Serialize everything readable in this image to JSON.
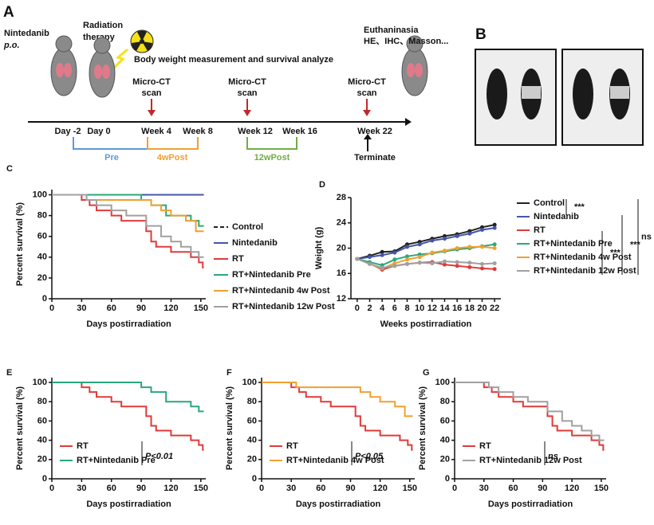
{
  "panel_labels": [
    "A",
    "B"
  ],
  "timeline": {
    "drug": "Nintedanib",
    "route": "p.o.",
    "radiation": [
      "Radiation",
      "therapy"
    ],
    "measure": "Body weight measurement and survival analyze",
    "end": [
      "Euthaninasia",
      "HE、IHC、Masson..."
    ],
    "scan": [
      "Micro-CT",
      "scan"
    ],
    "times": [
      "Day -2",
      "Day 0",
      "Week 4",
      "Week 8",
      "Week 12",
      "Week 16",
      "Week 22"
    ],
    "groups": [
      "Pre",
      "4wPost",
      "12wPost"
    ],
    "terminate": "Terminate"
  },
  "chart_data": [
    {
      "type": "line",
      "panel_label": "C",
      "ylabel": "Percent survival (%)",
      "xlabel": "Days postirradiation",
      "xlim": [
        0,
        155
      ],
      "xticks": [
        0,
        30,
        60,
        90,
        120,
        150
      ],
      "ylim": [
        0,
        105
      ],
      "yticks": [
        0,
        20,
        40,
        60,
        80,
        100
      ],
      "series": [
        {
          "name": "Control",
          "color": "#222222",
          "dashed": true,
          "x": [
            0,
            153
          ],
          "values": [
            100,
            100
          ]
        },
        {
          "name": "Nintedanib",
          "color": "#4455aa",
          "x": [
            0,
            153
          ],
          "values": [
            100,
            100
          ]
        },
        {
          "name": "RT",
          "color": "#e03a3a",
          "x": [
            0,
            30,
            30,
            38,
            38,
            45,
            45,
            60,
            60,
            70,
            70,
            95,
            95,
            100,
            100,
            105,
            105,
            120,
            120,
            140,
            140,
            148,
            148,
            152,
            152,
            153
          ],
          "values": [
            100,
            100,
            95,
            95,
            90,
            90,
            85,
            85,
            80,
            80,
            75,
            75,
            65,
            65,
            55,
            55,
            50,
            50,
            45,
            45,
            40,
            40,
            35,
            35,
            30,
            30
          ]
        },
        {
          "name": "RT+Nintedanib Pre",
          "color": "#2aa87a",
          "x": [
            0,
            90,
            90,
            100,
            100,
            115,
            115,
            140,
            140,
            148,
            148,
            153
          ],
          "values": [
            100,
            100,
            95,
            95,
            90,
            90,
            80,
            80,
            75,
            75,
            70,
            70
          ]
        },
        {
          "name": "RT+Nintedanib 4w Post",
          "color": "#f0a030",
          "x": [
            0,
            35,
            35,
            100,
            100,
            110,
            110,
            120,
            120,
            135,
            135,
            145,
            145,
            153
          ],
          "values": [
            100,
            100,
            95,
            95,
            90,
            90,
            85,
            85,
            80,
            80,
            75,
            75,
            65,
            65
          ]
        },
        {
          "name": "RT+Nintedanib 12w Post",
          "color": "#a0a0a0",
          "x": [
            0,
            35,
            35,
            45,
            45,
            60,
            60,
            75,
            75,
            95,
            95,
            110,
            110,
            120,
            120,
            130,
            130,
            140,
            140,
            148,
            148,
            153
          ],
          "values": [
            100,
            100,
            95,
            95,
            90,
            90,
            85,
            85,
            80,
            80,
            70,
            70,
            60,
            60,
            55,
            55,
            50,
            50,
            45,
            45,
            40,
            40
          ]
        }
      ]
    },
    {
      "type": "line",
      "panel_label": "D",
      "markers": true,
      "ylabel": "Weight (g)",
      "xlabel": "Weeks postirradiation",
      "xlim": [
        -1,
        23
      ],
      "xticks": [
        0,
        2,
        4,
        6,
        8,
        10,
        12,
        14,
        16,
        18,
        20,
        22
      ],
      "ylim": [
        12,
        28
      ],
      "yticks": [
        12,
        16,
        20,
        24,
        28
      ],
      "annotations": [
        "***",
        "***",
        "***",
        "ns"
      ],
      "series": [
        {
          "name": "Control",
          "color": "#222222",
          "x": [
            0,
            2,
            4,
            6,
            8,
            10,
            12,
            14,
            16,
            18,
            20,
            22
          ],
          "values": [
            18.3,
            18.8,
            19.4,
            19.5,
            20.6,
            21,
            21.5,
            21.9,
            22.2,
            22.7,
            23.3,
            23.7
          ]
        },
        {
          "name": "Nintedanib",
          "color": "#4455aa",
          "x": [
            0,
            2,
            4,
            6,
            8,
            10,
            12,
            14,
            16,
            18,
            20,
            22
          ],
          "values": [
            18.3,
            18.6,
            18.9,
            19.3,
            20.2,
            20.6,
            21.2,
            21.5,
            21.9,
            22.3,
            22.9,
            23.2
          ]
        },
        {
          "name": "RT",
          "color": "#e03a3a",
          "x": [
            0,
            2,
            4,
            6,
            8,
            10,
            12,
            14,
            16,
            18,
            20,
            22
          ],
          "values": [
            18.3,
            17.6,
            16.6,
            17.2,
            17.5,
            17.7,
            17.8,
            17.4,
            17.2,
            17,
            16.8,
            16.7
          ]
        },
        {
          "name": "RT+Nintedanib Pre",
          "color": "#2aa87a",
          "x": [
            0,
            2,
            4,
            6,
            8,
            10,
            12,
            14,
            16,
            18,
            20,
            22
          ],
          "values": [
            18.3,
            17.8,
            17.3,
            18.2,
            18.7,
            19,
            19.2,
            19.5,
            19.8,
            20,
            20.3,
            20.6
          ]
        },
        {
          "name": "RT+Nintedanib 4w Post",
          "color": "#f0a030",
          "x": [
            0,
            2,
            4,
            6,
            8,
            10,
            12,
            14,
            16,
            18,
            20,
            22
          ],
          "values": [
            18.3,
            17.5,
            16.8,
            17.6,
            18.2,
            18.6,
            19.3,
            19.6,
            20,
            20.2,
            20.2,
            20
          ]
        },
        {
          "name": "RT+Nintedanib 12w Post",
          "color": "#a0a0a0",
          "x": [
            0,
            2,
            4,
            6,
            8,
            10,
            12,
            14,
            16,
            18,
            20,
            22
          ],
          "values": [
            18.3,
            17.5,
            16.9,
            17.2,
            17.5,
            17.7,
            17.6,
            17.9,
            17.8,
            17.7,
            17.5,
            17.6
          ]
        }
      ]
    },
    {
      "type": "line",
      "panel_label": "E",
      "ylabel": "Percent survival (%)",
      "xlabel": "Days postirradiation",
      "xlim": [
        0,
        155
      ],
      "xticks": [
        0,
        30,
        60,
        90,
        120,
        150
      ],
      "ylim": [
        0,
        105
      ],
      "yticks": [
        0,
        20,
        40,
        60,
        80,
        100
      ],
      "annotations": [
        "P<0.01"
      ],
      "series": [
        {
          "name": "RT",
          "color": "#e03a3a",
          "x": [
            0,
            30,
            30,
            38,
            38,
            45,
            45,
            60,
            60,
            70,
            70,
            95,
            95,
            100,
            100,
            105,
            105,
            120,
            120,
            140,
            140,
            148,
            148,
            152,
            152,
            153
          ],
          "values": [
            100,
            100,
            95,
            95,
            90,
            90,
            85,
            85,
            80,
            80,
            75,
            75,
            65,
            65,
            55,
            55,
            50,
            50,
            45,
            45,
            40,
            40,
            35,
            35,
            30,
            30
          ]
        },
        {
          "name": "RT+Nintedanib Pre",
          "color": "#2aa87a",
          "x": [
            0,
            90,
            90,
            100,
            100,
            115,
            115,
            140,
            140,
            148,
            148,
            153
          ],
          "values": [
            100,
            100,
            95,
            95,
            90,
            90,
            80,
            80,
            75,
            75,
            70,
            70
          ]
        }
      ]
    },
    {
      "type": "line",
      "panel_label": "F",
      "ylabel": "Percent survival (%)",
      "xlabel": "Days postirradiation",
      "xlim": [
        0,
        155
      ],
      "xticks": [
        0,
        30,
        60,
        90,
        120,
        150
      ],
      "ylim": [
        0,
        105
      ],
      "yticks": [
        0,
        20,
        40,
        60,
        80,
        100
      ],
      "annotations": [
        "P<0.05"
      ],
      "series": [
        {
          "name": "RT",
          "color": "#e03a3a",
          "x": [
            0,
            30,
            30,
            38,
            38,
            45,
            45,
            60,
            60,
            70,
            70,
            95,
            95,
            100,
            100,
            105,
            105,
            120,
            120,
            140,
            140,
            148,
            148,
            152,
            152,
            153
          ],
          "values": [
            100,
            100,
            95,
            95,
            90,
            90,
            85,
            85,
            80,
            80,
            75,
            75,
            65,
            65,
            55,
            55,
            50,
            50,
            45,
            45,
            40,
            40,
            35,
            35,
            30,
            30
          ]
        },
        {
          "name": "RT+Nintedanib 4w Post",
          "color": "#f0a030",
          "x": [
            0,
            35,
            35,
            100,
            100,
            110,
            110,
            120,
            120,
            135,
            135,
            145,
            145,
            153
          ],
          "values": [
            100,
            100,
            95,
            95,
            90,
            90,
            85,
            85,
            80,
            80,
            75,
            75,
            65,
            65
          ]
        }
      ]
    },
    {
      "type": "line",
      "panel_label": "G",
      "ylabel": "Percent survival (%)",
      "xlabel": "Days postirradiation",
      "xlim": [
        0,
        155
      ],
      "xticks": [
        0,
        30,
        60,
        90,
        120,
        150
      ],
      "ylim": [
        0,
        105
      ],
      "yticks": [
        0,
        20,
        40,
        60,
        80,
        100
      ],
      "annotations": [
        "ns"
      ],
      "series": [
        {
          "name": "RT",
          "color": "#e03a3a",
          "x": [
            0,
            30,
            30,
            38,
            38,
            45,
            45,
            60,
            60,
            70,
            70,
            95,
            95,
            100,
            100,
            105,
            105,
            120,
            120,
            140,
            140,
            148,
            148,
            152,
            152,
            153
          ],
          "values": [
            100,
            100,
            95,
            95,
            90,
            90,
            85,
            85,
            80,
            80,
            75,
            75,
            65,
            65,
            55,
            55,
            50,
            50,
            45,
            45,
            40,
            40,
            35,
            35,
            30,
            30
          ]
        },
        {
          "name": "RT+Nintedanib 12w Post",
          "color": "#a0a0a0",
          "x": [
            0,
            35,
            35,
            45,
            45,
            60,
            60,
            75,
            75,
            95,
            95,
            110,
            110,
            120,
            120,
            130,
            130,
            140,
            140,
            148,
            148,
            153
          ],
          "values": [
            100,
            100,
            95,
            95,
            90,
            90,
            85,
            85,
            80,
            80,
            70,
            70,
            60,
            60,
            55,
            55,
            50,
            50,
            45,
            45,
            40,
            40
          ]
        }
      ]
    }
  ]
}
